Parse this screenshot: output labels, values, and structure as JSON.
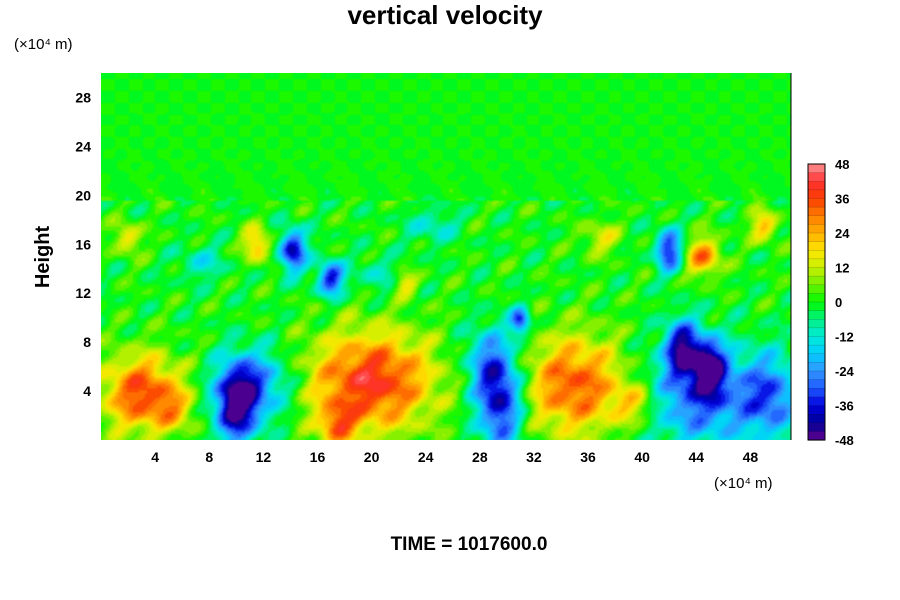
{
  "chart_data": {
    "type": "heatmap",
    "title": "vertical velocity",
    "ylabel": "Height",
    "x_unit": "(×10⁴ m)",
    "y_unit": "(×10⁴ m)",
    "xlim": [
      0,
      51
    ],
    "ylim": [
      0,
      30
    ],
    "xticks": [
      4,
      8,
      12,
      16,
      20,
      24,
      28,
      32,
      36,
      40,
      44,
      48
    ],
    "yticks": [
      4,
      8,
      12,
      16,
      20,
      24,
      28
    ],
    "colorbar": {
      "ticks": [
        48,
        36,
        24,
        12,
        0,
        -12,
        -24,
        -36,
        -48
      ],
      "range": [
        -48,
        48
      ],
      "levels": 32
    },
    "footer": "TIME = 1017600.0",
    "features": [
      {
        "x": 3.0,
        "y": 3.8,
        "sx": 2.0,
        "sy": 2.2,
        "v": 36
      },
      {
        "x": 5.5,
        "y": 2.5,
        "sx": 1.0,
        "sy": 1.2,
        "v": 14
      },
      {
        "x": 10.0,
        "y": 2.8,
        "sx": 1.1,
        "sy": 2.2,
        "v": -44
      },
      {
        "x": 11.5,
        "y": 4.5,
        "sx": 1.8,
        "sy": 2.0,
        "v": -26
      },
      {
        "x": 20.0,
        "y": 4.8,
        "sx": 3.2,
        "sy": 2.8,
        "v": 40
      },
      {
        "x": 17.5,
        "y": 1.2,
        "sx": 1.0,
        "sy": 1.2,
        "v": 24
      },
      {
        "x": 29.5,
        "y": 3.2,
        "sx": 1.2,
        "sy": 2.8,
        "v": -40
      },
      {
        "x": 28.5,
        "y": 6.5,
        "sx": 1.2,
        "sy": 2.0,
        "v": -18
      },
      {
        "x": 35.0,
        "y": 4.5,
        "sx": 2.6,
        "sy": 2.8,
        "v": 34
      },
      {
        "x": 39.5,
        "y": 3.0,
        "sx": 1.2,
        "sy": 1.2,
        "v": 18
      },
      {
        "x": 44.5,
        "y": 3.5,
        "sx": 3.0,
        "sy": 2.8,
        "v": -30
      },
      {
        "x": 43.0,
        "y": 7.5,
        "sx": 0.9,
        "sy": 1.6,
        "v": -40
      },
      {
        "x": 45.0,
        "y": 6.0,
        "sx": 0.8,
        "sy": 1.5,
        "v": -40
      },
      {
        "x": 49.5,
        "y": 3.5,
        "sx": 1.4,
        "sy": 2.4,
        "v": -26
      },
      {
        "x": 14.2,
        "y": 15.5,
        "sx": 0.7,
        "sy": 1.2,
        "v": -40
      },
      {
        "x": 17.0,
        "y": 13.2,
        "sx": 0.7,
        "sy": 1.0,
        "v": -36
      },
      {
        "x": 11.5,
        "y": 16.0,
        "sx": 0.7,
        "sy": 1.0,
        "v": 24
      },
      {
        "x": 2.0,
        "y": 16.5,
        "sx": 0.7,
        "sy": 0.9,
        "v": 18
      },
      {
        "x": 42.0,
        "y": 15.5,
        "sx": 0.7,
        "sy": 1.2,
        "v": -36
      },
      {
        "x": 44.5,
        "y": 15.0,
        "sx": 0.9,
        "sy": 1.1,
        "v": 30
      },
      {
        "x": 49.0,
        "y": 17.5,
        "sx": 0.7,
        "sy": 0.9,
        "v": 22
      },
      {
        "x": 31.0,
        "y": 9.7,
        "sx": 0.5,
        "sy": 0.8,
        "v": -34
      },
      {
        "x": 24.5,
        "y": 17.5,
        "sx": 1.3,
        "sy": 1.0,
        "v": -12
      },
      {
        "x": 37.0,
        "y": 16.5,
        "sx": 1.0,
        "sy": 1.0,
        "v": 14
      },
      {
        "x": 7.5,
        "y": 14.5,
        "sx": 1.2,
        "sy": 1.0,
        "v": -12
      },
      {
        "x": 20.5,
        "y": 13.5,
        "sx": 1.2,
        "sy": 1.0,
        "v": -10
      },
      {
        "x": 22.5,
        "y": 12.8,
        "sx": 0.6,
        "sy": 0.7,
        "v": 18
      }
    ]
  }
}
